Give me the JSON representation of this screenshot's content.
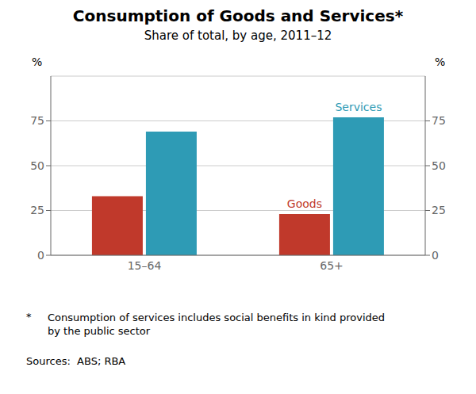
{
  "chart_data": {
    "type": "bar",
    "title": "Consumption of Goods and Services*",
    "subtitle": "Share of total, by age, 2011–12",
    "categories": [
      "15–64",
      "65+"
    ],
    "series": [
      {
        "name": "Goods",
        "color": "#C0392B",
        "values": [
          33,
          23
        ]
      },
      {
        "name": "Services",
        "color": "#2E9BB5",
        "values": [
          69,
          77
        ]
      }
    ],
    "ylabel": "%",
    "y2label": "%",
    "ylim": [
      0,
      100
    ],
    "yticks": [
      0,
      25,
      50,
      75
    ],
    "y2lim": [
      0,
      100
    ],
    "y2ticks": [
      0,
      25,
      50,
      75
    ],
    "grid": true,
    "footnote_marker": "*",
    "footnote": "Consumption of services includes social benefits in kind provided\nby the public sector",
    "source": "Sources:  ABS; RBA"
  }
}
